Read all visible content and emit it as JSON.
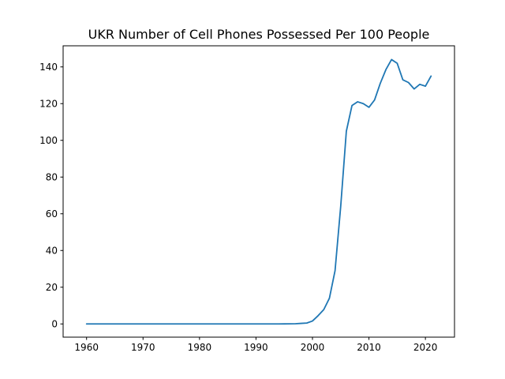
{
  "chart_data": {
    "type": "line",
    "title": "UKR Number of Cell Phones Possessed Per 100 People",
    "xlabel": "",
    "ylabel": "",
    "xlim": [
      1955.85,
      2025.15
    ],
    "ylim": [
      -7.2,
      151.5
    ],
    "x_ticks": [
      1960,
      1970,
      1980,
      1990,
      2000,
      2010,
      2020
    ],
    "y_ticks": [
      0,
      20,
      40,
      60,
      80,
      100,
      120,
      140
    ],
    "grid": false,
    "line_color": "#1f77b4",
    "series": [
      {
        "x": [
          1960,
          1961,
          1962,
          1963,
          1964,
          1965,
          1966,
          1967,
          1968,
          1969,
          1970,
          1971,
          1972,
          1973,
          1974,
          1975,
          1976,
          1977,
          1978,
          1979,
          1980,
          1981,
          1982,
          1983,
          1984,
          1985,
          1986,
          1987,
          1988,
          1989,
          1990,
          1991,
          1992,
          1993,
          1994,
          1995,
          1996,
          1997,
          1998,
          1999,
          2000,
          2001,
          2002,
          2003,
          2004,
          2005,
          2006,
          2007,
          2008,
          2009,
          2010,
          2011,
          2012,
          2013,
          2014,
          2015,
          2016,
          2017,
          2018,
          2019,
          2020,
          2021
        ],
        "y": [
          0,
          0,
          0,
          0,
          0,
          0,
          0,
          0,
          0,
          0,
          0,
          0,
          0,
          0,
          0,
          0,
          0,
          0,
          0,
          0,
          0,
          0,
          0,
          0,
          0,
          0,
          0,
          0,
          0,
          0,
          0,
          0,
          0,
          0,
          0.01,
          0.03,
          0.06,
          0.1,
          0.3,
          0.5,
          1.6,
          4.5,
          7.8,
          14,
          29,
          64,
          105,
          119,
          121,
          120,
          118,
          122,
          131,
          138.5,
          144,
          142,
          133,
          131.5,
          128,
          130.5,
          129.5,
          135
        ]
      }
    ]
  }
}
